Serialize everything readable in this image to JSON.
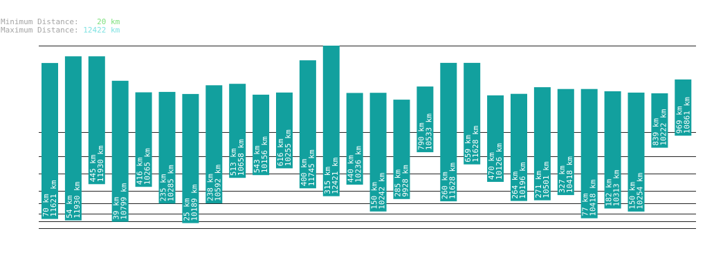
{
  "stats": {
    "min_label": "Minimum Distance:",
    "min_value": "20 km",
    "max_label": "Maximum Distance:",
    "max_value": "12422 km"
  },
  "colors": {
    "bar": "#12a09e",
    "bar_text": "#ffffff",
    "grid": "#222222",
    "min_value": "#7ee07e",
    "max_value": "#7fe2e2",
    "label": "#a4a4a4"
  },
  "chart_data": {
    "type": "bar",
    "title": "",
    "xlabel": "",
    "ylabel": "",
    "series": [
      {
        "min_km": [
          70,
          54,
          445,
          39,
          416,
          235,
          25,
          238,
          513,
          543,
          616,
          400,
          315,
          440,
          150,
          285,
          790,
          260,
          659,
          470,
          264,
          271,
          327,
          77,
          182,
          150,
          839,
          969
        ],
        "max_km": [
          11621,
          11930,
          11930,
          10799,
          10265,
          10285,
          10189,
          10592,
          10658,
          10156,
          10255,
          11745,
          12421,
          10236,
          10242,
          9928,
          10533,
          11628,
          11628,
          10126,
          10196,
          10501,
          10418,
          10418,
          10313,
          10254,
          10222,
          10861
        ]
      }
    ],
    "labels": [
      [
        "70 km",
        "11621 km"
      ],
      [
        "54 km",
        "11930 km"
      ],
      [
        "445 km",
        "11930 km"
      ],
      [
        "39 km",
        "10799 km"
      ],
      [
        "416 km",
        "10265 km"
      ],
      [
        "235 km",
        "10285 km"
      ],
      [
        "25 km",
        "10189 km"
      ],
      [
        "238 km",
        "10592 km"
      ],
      [
        "513 km",
        "10658 km"
      ],
      [
        "543 km",
        "10156 km"
      ],
      [
        "616 km",
        "10255 km"
      ],
      [
        "400 km",
        "11745 km"
      ],
      [
        "315 km",
        "12421 km"
      ],
      [
        "440 km",
        "10236 km"
      ],
      [
        "150 km",
        "10242 km"
      ],
      [
        "285 km",
        "9928 km"
      ],
      [
        "790 km",
        "10533 km"
      ],
      [
        "260 km",
        "11628 km"
      ],
      [
        "659 km",
        "11628 km"
      ],
      [
        "470 km",
        "10126 km"
      ],
      [
        "264 km",
        "10196 km"
      ],
      [
        "271 km",
        "10501 km"
      ],
      [
        "327 km",
        "10418 km"
      ],
      [
        "77 km",
        "10418 km"
      ],
      [
        "182 km",
        "10313 km"
      ],
      [
        "150 km",
        "10254 km"
      ],
      [
        "839 km",
        "10222 km"
      ],
      [
        "969 km",
        "10861 km"
      ]
    ],
    "grid": true
  }
}
